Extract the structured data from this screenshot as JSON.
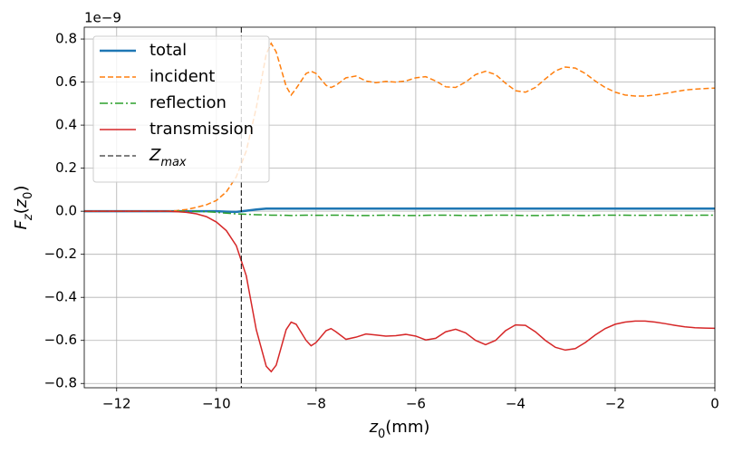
{
  "chart_data": {
    "type": "line",
    "y_offset_label": "1e−9",
    "xlabel": [
      {
        "text": "z",
        "italic": true
      },
      {
        "text": "0",
        "sub": true
      },
      {
        "text": "(mm)"
      }
    ],
    "ylabel": [
      {
        "text": "F",
        "italic": true
      },
      {
        "text": "z",
        "sub": true,
        "italic": true
      },
      {
        "text": "("
      },
      {
        "text": "z",
        "italic": true
      },
      {
        "text": "0",
        "sub": true
      },
      {
        "text": ")"
      }
    ],
    "xlim": [
      -12.65,
      0
    ],
    "ylim": [
      -0.82,
      0.855
    ],
    "xticks": [
      {
        "value": -12,
        "label": "−12"
      },
      {
        "value": -10,
        "label": "−10"
      },
      {
        "value": -8,
        "label": "−8"
      },
      {
        "value": -6,
        "label": "−6"
      },
      {
        "value": -4,
        "label": "−4"
      },
      {
        "value": -2,
        "label": "−2"
      },
      0
    ],
    "yticks": [
      {
        "value": -0.8,
        "label": "−0.8"
      },
      {
        "value": -0.6,
        "label": "−0.6"
      },
      {
        "value": -0.4,
        "label": "−0.4"
      },
      {
        "value": -0.2,
        "label": "−0.2"
      },
      {
        "value": 0,
        "label": "0.0"
      },
      0.2,
      0.4,
      0.6,
      0.8
    ],
    "grid": true,
    "legend": "upper left",
    "x": [
      -12.65,
      -12,
      -11.5,
      -11,
      -10.8,
      -10.6,
      -10.4,
      -10.2,
      -10,
      -9.8,
      -9.6,
      -9.4,
      -9.2,
      -9.0,
      -8.9,
      -8.8,
      -8.6,
      -8.5,
      -8.4,
      -8.2,
      -8.1,
      -8.0,
      -7.8,
      -7.7,
      -7.6,
      -7.4,
      -7.2,
      -7.0,
      -6.8,
      -6.6,
      -6.4,
      -6.2,
      -6.0,
      -5.8,
      -5.6,
      -5.4,
      -5.2,
      -5.0,
      -4.8,
      -4.6,
      -4.4,
      -4.2,
      -4.0,
      -3.8,
      -3.6,
      -3.4,
      -3.2,
      -3.0,
      -2.8,
      -2.6,
      -2.4,
      -2.2,
      -2.0,
      -1.8,
      -1.6,
      -1.4,
      -1.2,
      -1.0,
      -0.8,
      -0.6,
      -0.4,
      -0.2,
      0
    ],
    "series": [
      {
        "name": "total",
        "color": "#1f77b4",
        "style": "solid",
        "width": 2.5,
        "values": [
          0,
          0,
          0,
          0,
          0,
          0,
          0,
          0,
          0,
          -0.002,
          -0.003,
          0.002,
          0.008,
          0.012,
          0.012,
          0.012,
          0.012,
          0.012,
          0.012,
          0.012,
          0.012,
          0.012,
          0.012,
          0.012,
          0.012,
          0.012,
          0.012,
          0.012,
          0.012,
          0.012,
          0.012,
          0.012,
          0.012,
          0.012,
          0.012,
          0.012,
          0.012,
          0.012,
          0.012,
          0.012,
          0.012,
          0.012,
          0.012,
          0.012,
          0.012,
          0.012,
          0.012,
          0.012,
          0.012,
          0.012,
          0.012,
          0.012,
          0.012,
          0.012,
          0.012,
          0.012,
          0.012,
          0.012,
          0.012,
          0.012,
          0.012,
          0.012,
          0.012
        ]
      },
      {
        "name": "incident",
        "color": "#ff7f0e",
        "style": "dashed",
        "width": 1.5,
        "values": [
          0,
          0,
          0,
          0,
          0.003,
          0.008,
          0.018,
          0.03,
          0.05,
          0.09,
          0.16,
          0.28,
          0.48,
          0.73,
          0.78,
          0.74,
          0.58,
          0.54,
          0.57,
          0.64,
          0.65,
          0.64,
          0.585,
          0.575,
          0.585,
          0.62,
          0.628,
          0.605,
          0.597,
          0.603,
          0.6,
          0.605,
          0.62,
          0.625,
          0.605,
          0.578,
          0.575,
          0.6,
          0.635,
          0.65,
          0.635,
          0.595,
          0.56,
          0.553,
          0.575,
          0.615,
          0.652,
          0.67,
          0.665,
          0.64,
          0.605,
          0.575,
          0.553,
          0.54,
          0.535,
          0.535,
          0.54,
          0.547,
          0.555,
          0.563,
          0.567,
          0.57,
          0.572
        ]
      },
      {
        "name": "reflection",
        "color": "#2ca02c",
        "style": "dashdot",
        "width": 1.5,
        "values": [
          0,
          0,
          0,
          0,
          0,
          0,
          -0.001,
          -0.002,
          -0.005,
          -0.009,
          -0.012,
          -0.014,
          -0.016,
          -0.017,
          -0.018,
          -0.018,
          -0.019,
          -0.02,
          -0.019,
          -0.018,
          -0.018,
          -0.019,
          -0.019,
          -0.018,
          -0.018,
          -0.019,
          -0.02,
          -0.02,
          -0.019,
          -0.018,
          -0.019,
          -0.02,
          -0.02,
          -0.019,
          -0.018,
          -0.018,
          -0.019,
          -0.02,
          -0.02,
          -0.019,
          -0.018,
          -0.018,
          -0.019,
          -0.02,
          -0.02,
          -0.019,
          -0.018,
          -0.018,
          -0.019,
          -0.02,
          -0.019,
          -0.018,
          -0.018,
          -0.018,
          -0.019,
          -0.019,
          -0.018,
          -0.018,
          -0.018,
          -0.019,
          -0.019,
          -0.018,
          -0.018
        ]
      },
      {
        "name": "transmission",
        "color": "#d62728",
        "style": "solid",
        "width": 1.5,
        "values": [
          0,
          0,
          0,
          0,
          -0.002,
          -0.005,
          -0.012,
          -0.025,
          -0.05,
          -0.09,
          -0.16,
          -0.3,
          -0.55,
          -0.72,
          -0.745,
          -0.715,
          -0.55,
          -0.515,
          -0.525,
          -0.6,
          -0.625,
          -0.61,
          -0.555,
          -0.545,
          -0.56,
          -0.595,
          -0.585,
          -0.57,
          -0.575,
          -0.58,
          -0.578,
          -0.572,
          -0.58,
          -0.598,
          -0.59,
          -0.56,
          -0.548,
          -0.565,
          -0.6,
          -0.62,
          -0.6,
          -0.555,
          -0.528,
          -0.53,
          -0.56,
          -0.6,
          -0.632,
          -0.645,
          -0.638,
          -0.61,
          -0.575,
          -0.545,
          -0.525,
          -0.515,
          -0.51,
          -0.51,
          -0.515,
          -0.522,
          -0.53,
          -0.537,
          -0.541,
          -0.543,
          -0.544
        ]
      }
    ],
    "vline": {
      "x": -9.5,
      "color": "#000000",
      "style": "dashed",
      "name": [
        {
          "text": "Z",
          "italic": true
        },
        {
          "text": "max",
          "sub": true,
          "italic": true
        }
      ]
    }
  }
}
